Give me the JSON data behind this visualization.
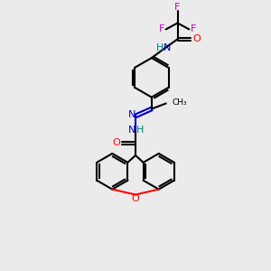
{
  "background_color": "#ebebeb",
  "atom_colors": {
    "C": "#000000",
    "H": "#008080",
    "N": "#0000cc",
    "O": "#ff0000",
    "F": "#cc00cc"
  },
  "figsize": [
    3.0,
    3.0
  ],
  "dpi": 100
}
